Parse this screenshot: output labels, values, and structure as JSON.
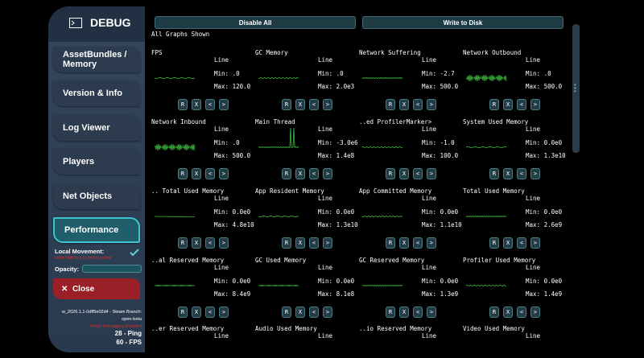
{
  "sidebar": {
    "title": "DEBUG",
    "menu": [
      "AssetBundles / Memory",
      "Version & Info",
      "Log Viewer",
      "Players",
      "Net Objects",
      "Performance"
    ],
    "local_movement": "Local Movement:",
    "hint": "Hold TAB key to move cursor",
    "opacity": "Opacity:",
    "close": "Close",
    "build": "w_2026.1.1-0dff5e02d4 - Steam Branch: open-beta",
    "world_debug": "World Debugging Enabled",
    "ping": "28 - Ping",
    "fps": "60 - FPS"
  },
  "toolbar": {
    "disable_all": "Disable All",
    "write_to_disk": "Write to Disk",
    "status": "All Graphs Shown"
  },
  "graph_buttons": [
    "R",
    "X",
    "<",
    ">"
  ],
  "graphs": [
    {
      "name": "FPS",
      "mode": "Line",
      "min": "Min: .0",
      "max": "Max: 120.0"
    },
    {
      "name": "GC Memory",
      "mode": "Line",
      "min": "Min: .0",
      "max": "Max: 2.0e3"
    },
    {
      "name": "Network Suffering",
      "mode": "Line",
      "min": "Min: -2.7",
      "max": "Max: 500.0"
    },
    {
      "name": "Network Outbound",
      "mode": "Line",
      "min": "Min: .0",
      "max": "Max: 500.0"
    },
    {
      "name": "Network Inbound",
      "mode": "Line",
      "min": "Min: .0",
      "max": "Max: 500.0"
    },
    {
      "name": "Main Thread",
      "mode": "Line",
      "min": "Min: -3.0e6",
      "max": "Max: 1.4e8"
    },
    {
      "name": "..ed ProfilerMarker>",
      "mode": "Line",
      "min": "Min: -1.0",
      "max": "Max: 100.0"
    },
    {
      "name": "System Used Memory",
      "mode": "Line",
      "min": "Min: 0.0e0",
      "max": "Max: 1.3e10"
    },
    {
      "name": ".. Total Used Memory",
      "mode": "Line",
      "min": "Min: 0.0e0",
      "max": "Max: 4.8e10"
    },
    {
      "name": "App Resident Memory",
      "mode": "Line",
      "min": "Min: 0.0e0",
      "max": "Max: 1.3e10"
    },
    {
      "name": "App Committed Memory",
      "mode": "Line",
      "min": "Min: 0.0e0",
      "max": "Max: 1.1e10"
    },
    {
      "name": "Total Used Memory",
      "mode": "Line",
      "min": "Min: 0.0e0",
      "max": "Max: 2.6e9"
    },
    {
      "name": "..al Reserved Memory",
      "mode": "Line",
      "min": "Min: 0.0e0",
      "max": "Max: 8.4e9"
    },
    {
      "name": "GC Used Memory",
      "mode": "Line",
      "min": "Min: 0.0e0",
      "max": "Max: 8.1e8"
    },
    {
      "name": "GC Reserved Memory",
      "mode": "Line",
      "min": "Min: 0.0e0",
      "max": "Max: 1.3e9"
    },
    {
      "name": "Profiler Used Memory",
      "mode": "Line",
      "min": "Min: 0.0e0",
      "max": "Max: 1.4e9"
    },
    {
      "name": "..er Reserved Memory",
      "mode": "Line"
    },
    {
      "name": "Audio Used Memory",
      "mode": "Line"
    },
    {
      "name": "..io Reserved Memory",
      "mode": "Line"
    },
    {
      "name": "Video Used Memory",
      "mode": "Line"
    }
  ]
}
